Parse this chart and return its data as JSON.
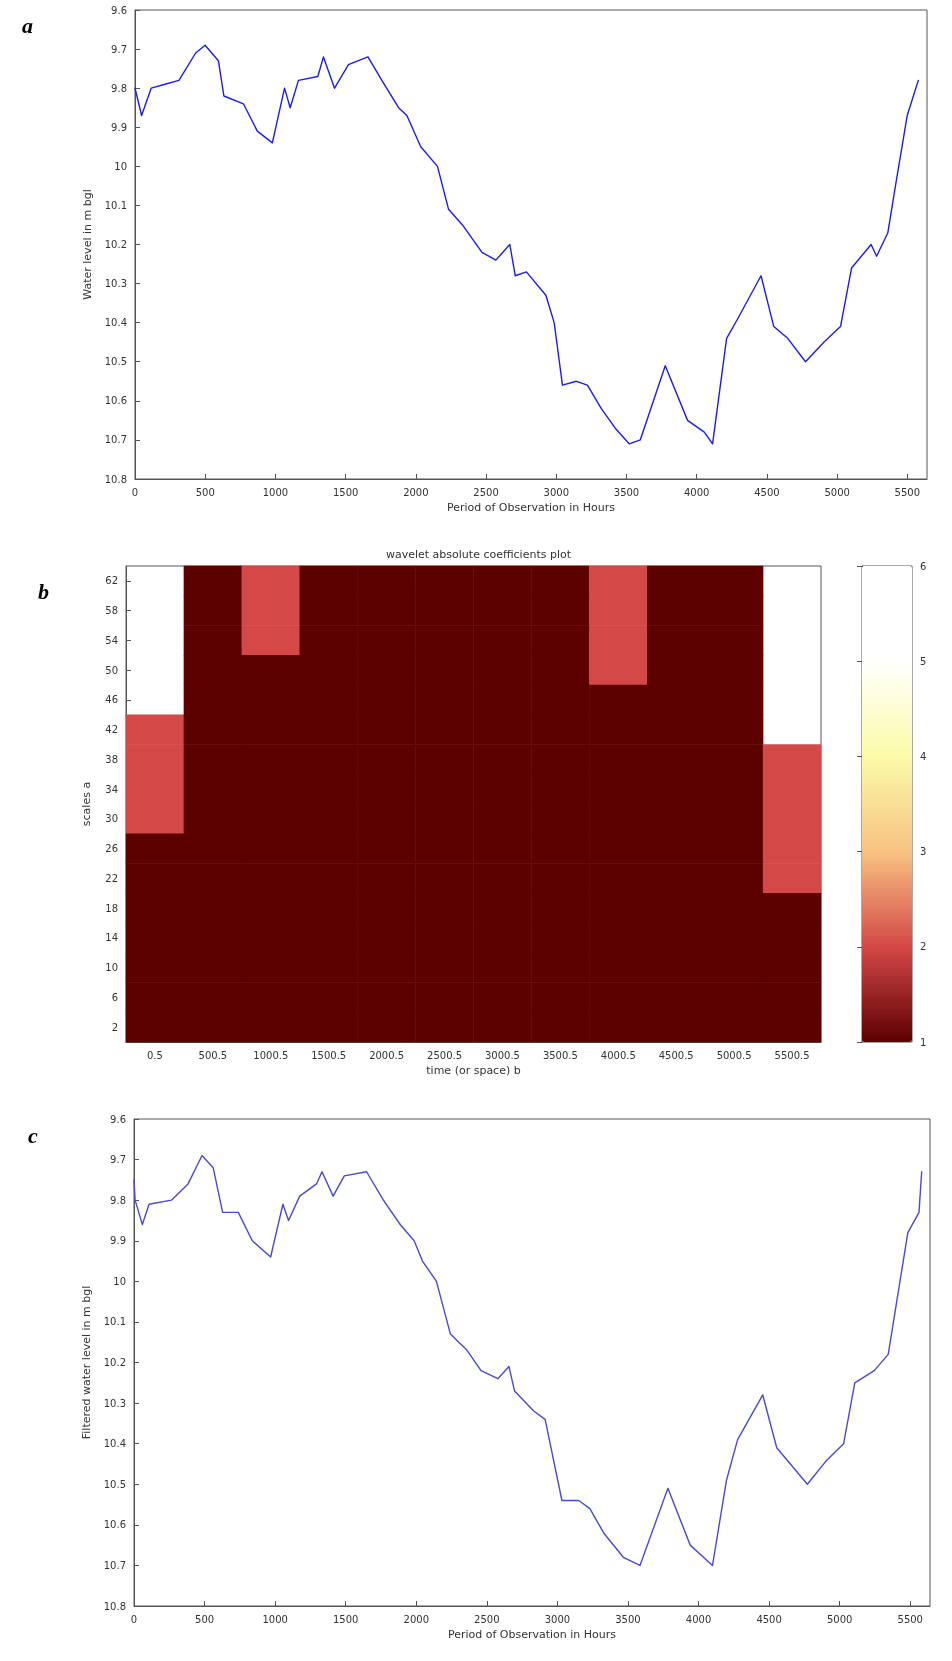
{
  "chart_data": [
    {
      "type": "line",
      "xlabel": "Period of Observation in Hours",
      "ylabel": "Water level in m bgl",
      "annotations": [
        "a"
      ],
      "x": [
        0,
        47,
        115,
        214,
        313,
        432,
        499,
        594,
        633,
        772,
        871,
        978,
        1065,
        1105,
        1164,
        1302,
        1342,
        1421,
        1520,
        1659,
        1758,
        1877,
        1936,
        2035,
        2154,
        2233,
        2332,
        2471,
        2570,
        2669,
        2708,
        2787,
        2926,
        2985,
        3044,
        3143,
        3222,
        3321,
        3420,
        3519,
        3598,
        3776,
        3935,
        4054,
        4113,
        4213,
        4292,
        4458,
        4549,
        4648,
        4775,
        4905,
        5024,
        5103,
        5242,
        5281,
        5361,
        5420,
        5499,
        5578
      ],
      "series": [
        {
          "color": "#1a1aff",
          "values": [
            9.8,
            9.87,
            9.8,
            9.79,
            9.78,
            9.71,
            9.69,
            9.73,
            9.82,
            9.84,
            9.91,
            9.94,
            9.8,
            9.85,
            9.78,
            9.77,
            9.72,
            9.8,
            9.74,
            9.72,
            9.78,
            9.85,
            9.87,
            9.95,
            10,
            10.11,
            10.15,
            10.22,
            10.24,
            10.2,
            10.28,
            10.27,
            10.33,
            10.4,
            10.56,
            10.55,
            10.56,
            10.62,
            10.67,
            10.71,
            10.7,
            10.51,
            10.65,
            10.68,
            10.71,
            10.44,
            10.39,
            10.28,
            10.41,
            10.44,
            10.5,
            10.45,
            10.41,
            10.26,
            10.2,
            10.23,
            10.17,
            10.04,
            9.87,
            9.78
          ]
        }
      ],
      "xlim": [
        0,
        5640
      ],
      "ylim": [
        10.8,
        9.6
      ],
      "xticks": [
        0,
        500,
        1000,
        1500,
        2000,
        2500,
        3000,
        3500,
        4000,
        4500,
        5000,
        5500
      ],
      "yticks": [
        9.6,
        9.7,
        9.8,
        9.9,
        10,
        10.1,
        10.2,
        10.3,
        10.4,
        10.5,
        10.6,
        10.7,
        10.8
      ]
    },
    {
      "type": "heatmap",
      "title": "wavelet absolute coefficients plot",
      "xlabel": "time (or space) b",
      "ylabel": "scales a",
      "annotations": [
        "b"
      ],
      "categories": [
        "0.5",
        "500.5",
        "1000.5",
        "1500.5",
        "2000.5",
        "2500.5",
        "3000.5",
        "3500.5",
        "4000.5",
        "4500.5",
        "5000.5",
        "5500.5"
      ],
      "y_categories": [
        "62",
        "58",
        "54",
        "50",
        "46",
        "42",
        "38",
        "34",
        "30",
        "26",
        "22",
        "18",
        "14",
        "10",
        "6",
        "2"
      ],
      "colors": [
        "#5c0000",
        "#d44848",
        "#f7c283",
        "#fbfba8",
        "#ffffff",
        "#ffffff"
      ],
      "clim": [
        1,
        6
      ],
      "cticks": [
        1,
        2,
        3,
        4,
        5,
        6
      ],
      "cells": [
        [
          null,
          1,
          2,
          1,
          1,
          1,
          1,
          1,
          2,
          1,
          1,
          null
        ],
        [
          null,
          1,
          2,
          1,
          1,
          1,
          1,
          1,
          2,
          1,
          1,
          null
        ],
        [
          null,
          1,
          2,
          1,
          1,
          1,
          1,
          1,
          2,
          1,
          1,
          null
        ],
        [
          null,
          1,
          1,
          1,
          1,
          1,
          1,
          1,
          2,
          1,
          1,
          null
        ],
        [
          null,
          1,
          1,
          1,
          1,
          1,
          1,
          1,
          1,
          1,
          1,
          null
        ],
        [
          2,
          1,
          1,
          1,
          1,
          1,
          1,
          1,
          1,
          1,
          1,
          null
        ],
        [
          2,
          1,
          1,
          1,
          1,
          1,
          1,
          1,
          1,
          1,
          1,
          2
        ],
        [
          2,
          1,
          1,
          1,
          1,
          1,
          1,
          1,
          1,
          1,
          1,
          2
        ],
        [
          2,
          1,
          1,
          1,
          1,
          1,
          1,
          1,
          1,
          1,
          1,
          2
        ],
        [
          1,
          1,
          1,
          1,
          1,
          1,
          1,
          1,
          1,
          1,
          1,
          2
        ],
        [
          1,
          1,
          1,
          1,
          1,
          1,
          1,
          1,
          1,
          1,
          1,
          2
        ],
        [
          1,
          1,
          1,
          1,
          1,
          1,
          1,
          1,
          1,
          1,
          1,
          1
        ],
        [
          1,
          1,
          1,
          1,
          1,
          1,
          1,
          1,
          1,
          1,
          1,
          1
        ],
        [
          1,
          1,
          1,
          1,
          1,
          1,
          1,
          1,
          1,
          1,
          1,
          1
        ],
        [
          1,
          1,
          1,
          1,
          1,
          1,
          1,
          1,
          1,
          1,
          1,
          1
        ],
        [
          1,
          1,
          1,
          1,
          1,
          1,
          1,
          1,
          1,
          1,
          1,
          1
        ]
      ]
    },
    {
      "type": "line",
      "xlabel": "Period of Observation in Hours",
      "ylabel": "Filtered water level in m bgl",
      "annotations": [
        "c"
      ],
      "x": [
        0,
        8,
        59,
        107,
        265,
        383,
        482,
        561,
        628,
        739,
        838,
        968,
        1055,
        1095,
        1174,
        1293,
        1332,
        1411,
        1490,
        1648,
        1767,
        1886,
        1985,
        2044,
        2143,
        2242,
        2360,
        2459,
        2578,
        2657,
        2696,
        2834,
        2913,
        3032,
        3151,
        3230,
        3328,
        3467,
        3585,
        3783,
        3941,
        4099,
        4198,
        4277,
        4455,
        4554,
        4771,
        4910,
        5028,
        5107,
        5245,
        5344,
        5404,
        5483,
        5562,
        5581
      ],
      "series": [
        {
          "color": "#4848e0",
          "values": [
            9.75,
            9.8,
            9.86,
            9.81,
            9.8,
            9.76,
            9.69,
            9.72,
            9.83,
            9.83,
            9.9,
            9.94,
            9.81,
            9.85,
            9.79,
            9.76,
            9.73,
            9.79,
            9.74,
            9.73,
            9.8,
            9.86,
            9.9,
            9.95,
            10,
            10.13,
            10.17,
            10.22,
            10.24,
            10.21,
            10.27,
            10.32,
            10.34,
            10.54,
            10.54,
            10.56,
            10.62,
            10.68,
            10.7,
            10.51,
            10.65,
            10.7,
            10.49,
            10.39,
            10.28,
            10.41,
            10.5,
            10.44,
            10.4,
            10.25,
            10.22,
            10.18,
            10.05,
            9.88,
            9.83,
            9.73
          ]
        }
      ],
      "xlim": [
        0,
        5640
      ],
      "ylim": [
        10.8,
        9.6
      ],
      "xticks": [
        0,
        500,
        1000,
        1500,
        2000,
        2500,
        3000,
        3500,
        4000,
        4500,
        5000,
        5500
      ],
      "yticks": [
        9.6,
        9.7,
        9.8,
        9.9,
        10,
        10.1,
        10.2,
        10.3,
        10.4,
        10.5,
        10.6,
        10.7,
        10.8
      ]
    }
  ]
}
